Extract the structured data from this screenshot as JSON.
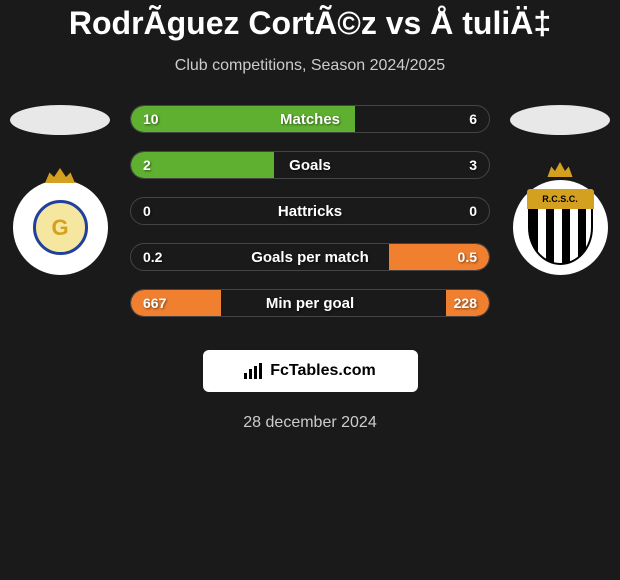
{
  "header": {
    "title": "RodrÃ­guez CortÃ©z vs Å tuliÄ‡",
    "subtitle": "Club competitions, Season 2024/2025"
  },
  "teams": {
    "left": {
      "name": "USG",
      "flag_color": "#e8e8e8",
      "badge_text": "G",
      "badge_label": "usg-badge"
    },
    "right": {
      "name": "RCSC",
      "flag_color": "#e8e8e8",
      "badge_text": "R.C.S.C.",
      "badge_label": "rcsc-badge"
    }
  },
  "stats": [
    {
      "label": "Matches",
      "left_value": "10",
      "right_value": "6",
      "left_bar_width": 62.5,
      "right_bar_width": 0,
      "left_bar_color": "#5fb030",
      "right_bar_color": "#5fb030"
    },
    {
      "label": "Goals",
      "left_value": "2",
      "right_value": "3",
      "left_bar_width": 40,
      "right_bar_width": 0,
      "left_bar_color": "#5fb030",
      "right_bar_color": "#5fb030"
    },
    {
      "label": "Hattricks",
      "left_value": "0",
      "right_value": "0",
      "left_bar_width": 0,
      "right_bar_width": 0,
      "left_bar_color": "#5fb030",
      "right_bar_color": "#5fb030"
    },
    {
      "label": "Goals per match",
      "left_value": "0.2",
      "right_value": "0.5",
      "left_bar_width": 0,
      "right_bar_width": 28,
      "left_bar_color": "#f08030",
      "right_bar_color": "#f08030"
    },
    {
      "label": "Min per goal",
      "left_value": "667",
      "right_value": "228",
      "left_bar_width": 25,
      "right_bar_width": 12,
      "left_bar_color": "#f08030",
      "right_bar_color": "#f08030"
    }
  ],
  "footer": {
    "brand": "FcTables.com",
    "date": "28 december 2024"
  },
  "colors": {
    "background": "#1a1a1a",
    "text_primary": "#ffffff",
    "text_secondary": "#cccccc",
    "bar_border": "#444444"
  }
}
